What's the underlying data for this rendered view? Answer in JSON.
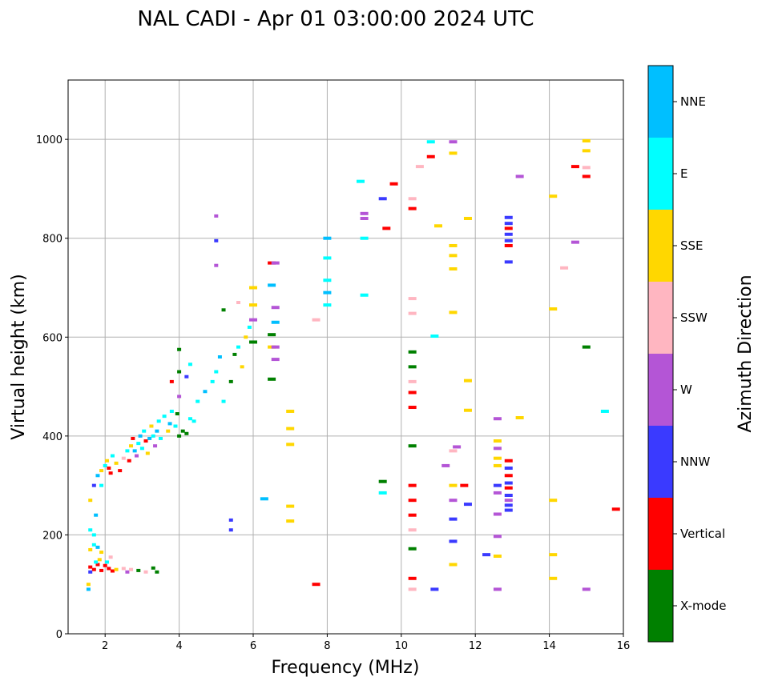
{
  "chart_data": {
    "type": "scatter",
    "title": "NAL CADI - Apr 01 03:00:00 2024 UTC",
    "xlabel": "Frequency (MHz)",
    "ylabel": "Virtual height (km)",
    "xlim": [
      1,
      16
    ],
    "ylim": [
      0,
      1120
    ],
    "xticks": [
      2,
      4,
      6,
      8,
      10,
      12,
      14,
      16
    ],
    "yticks": [
      0,
      200,
      400,
      600,
      800,
      1000
    ],
    "grid": true,
    "colorbar": {
      "label": "Azimuth Direction",
      "categories": [
        {
          "name": "X-mode",
          "color": "#008000"
        },
        {
          "name": "Vertical",
          "color": "#ff0000"
        },
        {
          "name": "NNW",
          "color": "#3a3aff"
        },
        {
          "name": "W",
          "color": "#b455d6"
        },
        {
          "name": "SSW",
          "color": "#ffb6c1"
        },
        {
          "name": "SSE",
          "color": "#ffd700"
        },
        {
          "name": "E",
          "color": "#00ffff"
        },
        {
          "name": "NNE",
          "color": "#00bfff"
        }
      ]
    },
    "points": [
      {
        "x": 1.6,
        "y": 135,
        "d": "Vertical"
      },
      {
        "x": 1.7,
        "y": 130,
        "d": "Vertical"
      },
      {
        "x": 1.8,
        "y": 140,
        "d": "Vertical"
      },
      {
        "x": 1.9,
        "y": 128,
        "d": "Vertical"
      },
      {
        "x": 2.0,
        "y": 138,
        "d": "Vertical"
      },
      {
        "x": 2.1,
        "y": 132,
        "d": "Vertical"
      },
      {
        "x": 2.2,
        "y": 127,
        "d": "Vertical"
      },
      {
        "x": 1.6,
        "y": 125,
        "d": "NNW"
      },
      {
        "x": 1.75,
        "y": 145,
        "d": "E"
      },
      {
        "x": 1.85,
        "y": 150,
        "d": "SSE"
      },
      {
        "x": 2.05,
        "y": 145,
        "d": "E"
      },
      {
        "x": 2.15,
        "y": 155,
        "d": "SSW"
      },
      {
        "x": 2.3,
        "y": 130,
        "d": "SSE"
      },
      {
        "x": 2.5,
        "y": 132,
        "d": "SSW"
      },
      {
        "x": 2.6,
        "y": 125,
        "d": "W"
      },
      {
        "x": 2.7,
        "y": 130,
        "d": "SSW"
      },
      {
        "x": 2.9,
        "y": 128,
        "d": "X-mode"
      },
      {
        "x": 3.1,
        "y": 125,
        "d": "SSW"
      },
      {
        "x": 3.3,
        "y": 133,
        "d": "X-mode"
      },
      {
        "x": 3.4,
        "y": 125,
        "d": "X-mode"
      },
      {
        "x": 1.55,
        "y": 100,
        "d": "SSE"
      },
      {
        "x": 1.55,
        "y": 90,
        "d": "NNE"
      },
      {
        "x": 1.6,
        "y": 170,
        "d": "SSE"
      },
      {
        "x": 1.7,
        "y": 180,
        "d": "E"
      },
      {
        "x": 1.8,
        "y": 175,
        "d": "NNE"
      },
      {
        "x": 1.9,
        "y": 165,
        "d": "SSE"
      },
      {
        "x": 1.7,
        "y": 200,
        "d": "E"
      },
      {
        "x": 1.6,
        "y": 210,
        "d": "E"
      },
      {
        "x": 1.75,
        "y": 240,
        "d": "NNE"
      },
      {
        "x": 1.6,
        "y": 270,
        "d": "SSE"
      },
      {
        "x": 1.7,
        "y": 300,
        "d": "NNW"
      },
      {
        "x": 1.9,
        "y": 300,
        "d": "E"
      },
      {
        "x": 1.8,
        "y": 320,
        "d": "NNE"
      },
      {
        "x": 1.9,
        "y": 330,
        "d": "SSE"
      },
      {
        "x": 2.0,
        "y": 340,
        "d": "E"
      },
      {
        "x": 2.05,
        "y": 350,
        "d": "SSE"
      },
      {
        "x": 2.1,
        "y": 335,
        "d": "Vertical"
      },
      {
        "x": 2.15,
        "y": 325,
        "d": "Vertical"
      },
      {
        "x": 2.2,
        "y": 360,
        "d": "E"
      },
      {
        "x": 2.3,
        "y": 345,
        "d": "SSE"
      },
      {
        "x": 2.4,
        "y": 330,
        "d": "Vertical"
      },
      {
        "x": 2.5,
        "y": 355,
        "d": "SSW"
      },
      {
        "x": 2.6,
        "y": 370,
        "d": "E"
      },
      {
        "x": 2.65,
        "y": 350,
        "d": "Vertical"
      },
      {
        "x": 2.7,
        "y": 380,
        "d": "SSE"
      },
      {
        "x": 2.75,
        "y": 395,
        "d": "Vertical"
      },
      {
        "x": 2.8,
        "y": 370,
        "d": "NNE"
      },
      {
        "x": 2.85,
        "y": 360,
        "d": "W"
      },
      {
        "x": 2.9,
        "y": 385,
        "d": "E"
      },
      {
        "x": 2.95,
        "y": 400,
        "d": "NNE"
      },
      {
        "x": 3.0,
        "y": 375,
        "d": "E"
      },
      {
        "x": 3.05,
        "y": 410,
        "d": "E"
      },
      {
        "x": 3.1,
        "y": 390,
        "d": "Vertical"
      },
      {
        "x": 3.15,
        "y": 365,
        "d": "SSE"
      },
      {
        "x": 3.2,
        "y": 395,
        "d": "NNE"
      },
      {
        "x": 3.25,
        "y": 420,
        "d": "SSE"
      },
      {
        "x": 3.3,
        "y": 400,
        "d": "E"
      },
      {
        "x": 3.35,
        "y": 380,
        "d": "W"
      },
      {
        "x": 3.4,
        "y": 410,
        "d": "NNE"
      },
      {
        "x": 3.45,
        "y": 430,
        "d": "E"
      },
      {
        "x": 3.5,
        "y": 395,
        "d": "E"
      },
      {
        "x": 3.6,
        "y": 440,
        "d": "E"
      },
      {
        "x": 3.7,
        "y": 410,
        "d": "SSE"
      },
      {
        "x": 3.75,
        "y": 425,
        "d": "NNE"
      },
      {
        "x": 3.8,
        "y": 450,
        "d": "E"
      },
      {
        "x": 3.9,
        "y": 420,
        "d": "E"
      },
      {
        "x": 3.95,
        "y": 445,
        "d": "X-mode"
      },
      {
        "x": 4.0,
        "y": 400,
        "d": "X-mode"
      },
      {
        "x": 4.1,
        "y": 410,
        "d": "X-mode"
      },
      {
        "x": 4.2,
        "y": 405,
        "d": "X-mode"
      },
      {
        "x": 4.3,
        "y": 435,
        "d": "E"
      },
      {
        "x": 4.4,
        "y": 430,
        "d": "E"
      },
      {
        "x": 4.0,
        "y": 480,
        "d": "W"
      },
      {
        "x": 4.0,
        "y": 530,
        "d": "X-mode"
      },
      {
        "x": 4.0,
        "y": 575,
        "d": "X-mode"
      },
      {
        "x": 3.8,
        "y": 510,
        "d": "Vertical"
      },
      {
        "x": 4.2,
        "y": 520,
        "d": "NNW"
      },
      {
        "x": 4.3,
        "y": 545,
        "d": "E"
      },
      {
        "x": 4.5,
        "y": 470,
        "d": "E"
      },
      {
        "x": 4.7,
        "y": 490,
        "d": "NNE"
      },
      {
        "x": 4.9,
        "y": 510,
        "d": "E"
      },
      {
        "x": 5.0,
        "y": 530,
        "d": "E"
      },
      {
        "x": 5.1,
        "y": 560,
        "d": "NNE"
      },
      {
        "x": 5.2,
        "y": 470,
        "d": "E"
      },
      {
        "x": 5.4,
        "y": 510,
        "d": "X-mode"
      },
      {
        "x": 5.5,
        "y": 565,
        "d": "X-mode"
      },
      {
        "x": 5.6,
        "y": 580,
        "d": "E"
      },
      {
        "x": 5.7,
        "y": 540,
        "d": "SSE"
      },
      {
        "x": 5.8,
        "y": 600,
        "d": "SSE"
      },
      {
        "x": 5.9,
        "y": 620,
        "d": "E"
      },
      {
        "x": 6.0,
        "y": 590,
        "d": "X-mode"
      },
      {
        "x": 6.0,
        "y": 635,
        "d": "W"
      },
      {
        "x": 6.0,
        "y": 665,
        "d": "SSE"
      },
      {
        "x": 6.0,
        "y": 700,
        "d": "SSE"
      },
      {
        "x": 5.6,
        "y": 670,
        "d": "SSW"
      },
      {
        "x": 5.2,
        "y": 655,
        "d": "X-mode"
      },
      {
        "x": 5.0,
        "y": 745,
        "d": "W"
      },
      {
        "x": 5.0,
        "y": 795,
        "d": "NNW"
      },
      {
        "x": 5.0,
        "y": 845,
        "d": "W"
      },
      {
        "x": 5.4,
        "y": 230,
        "d": "NNW"
      },
      {
        "x": 5.4,
        "y": 210,
        "d": "NNW"
      },
      {
        "x": 6.3,
        "y": 273,
        "d": "NNE"
      },
      {
        "x": 6.5,
        "y": 750,
        "d": "Vertical"
      },
      {
        "x": 6.6,
        "y": 750,
        "d": "W"
      },
      {
        "x": 6.5,
        "y": 605,
        "d": "X-mode"
      },
      {
        "x": 6.5,
        "y": 580,
        "d": "SSE"
      },
      {
        "x": 6.6,
        "y": 580,
        "d": "W"
      },
      {
        "x": 6.6,
        "y": 555,
        "d": "W"
      },
      {
        "x": 6.5,
        "y": 515,
        "d": "X-mode"
      },
      {
        "x": 6.6,
        "y": 660,
        "d": "W"
      },
      {
        "x": 6.6,
        "y": 630,
        "d": "NNE"
      },
      {
        "x": 6.5,
        "y": 705,
        "d": "NNE"
      },
      {
        "x": 7.0,
        "y": 450,
        "d": "SSE"
      },
      {
        "x": 7.0,
        "y": 415,
        "d": "SSE"
      },
      {
        "x": 7.0,
        "y": 383,
        "d": "SSE"
      },
      {
        "x": 7.0,
        "y": 258,
        "d": "SSE"
      },
      {
        "x": 7.0,
        "y": 228,
        "d": "SSE"
      },
      {
        "x": 7.7,
        "y": 100,
        "d": "Vertical"
      },
      {
        "x": 7.7,
        "y": 635,
        "d": "SSW"
      },
      {
        "x": 8.0,
        "y": 800,
        "d": "NNE"
      },
      {
        "x": 8.0,
        "y": 760,
        "d": "E"
      },
      {
        "x": 8.0,
        "y": 690,
        "d": "NNE"
      },
      {
        "x": 8.0,
        "y": 665,
        "d": "E"
      },
      {
        "x": 8.0,
        "y": 715,
        "d": "E"
      },
      {
        "x": 8.9,
        "y": 915,
        "d": "E"
      },
      {
        "x": 9.0,
        "y": 850,
        "d": "W"
      },
      {
        "x": 9.0,
        "y": 840,
        "d": "W"
      },
      {
        "x": 9.0,
        "y": 800,
        "d": "E"
      },
      {
        "x": 9.0,
        "y": 685,
        "d": "E"
      },
      {
        "x": 9.5,
        "y": 880,
        "d": "NNW"
      },
      {
        "x": 9.6,
        "y": 820,
        "d": "Vertical"
      },
      {
        "x": 9.8,
        "y": 910,
        "d": "Vertical"
      },
      {
        "x": 9.5,
        "y": 308,
        "d": "X-mode"
      },
      {
        "x": 9.5,
        "y": 285,
        "d": "E"
      },
      {
        "x": 10.3,
        "y": 880,
        "d": "SSW"
      },
      {
        "x": 10.3,
        "y": 860,
        "d": "Vertical"
      },
      {
        "x": 10.3,
        "y": 678,
        "d": "SSW"
      },
      {
        "x": 10.3,
        "y": 648,
        "d": "SSW"
      },
      {
        "x": 10.3,
        "y": 570,
        "d": "X-mode"
      },
      {
        "x": 10.3,
        "y": 540,
        "d": "X-mode"
      },
      {
        "x": 10.3,
        "y": 510,
        "d": "SSW"
      },
      {
        "x": 10.3,
        "y": 488,
        "d": "Vertical"
      },
      {
        "x": 10.3,
        "y": 458,
        "d": "Vertical"
      },
      {
        "x": 10.3,
        "y": 380,
        "d": "X-mode"
      },
      {
        "x": 10.3,
        "y": 300,
        "d": "Vertical"
      },
      {
        "x": 10.3,
        "y": 270,
        "d": "Vertical"
      },
      {
        "x": 10.3,
        "y": 240,
        "d": "Vertical"
      },
      {
        "x": 10.3,
        "y": 210,
        "d": "SSW"
      },
      {
        "x": 10.3,
        "y": 172,
        "d": "X-mode"
      },
      {
        "x": 10.3,
        "y": 112,
        "d": "Vertical"
      },
      {
        "x": 10.3,
        "y": 90,
        "d": "SSW"
      },
      {
        "x": 10.5,
        "y": 945,
        "d": "SSW"
      },
      {
        "x": 10.8,
        "y": 965,
        "d": "Vertical"
      },
      {
        "x": 10.8,
        "y": 995,
        "d": "E"
      },
      {
        "x": 10.9,
        "y": 602,
        "d": "E"
      },
      {
        "x": 11.0,
        "y": 825,
        "d": "SSE"
      },
      {
        "x": 10.9,
        "y": 90,
        "d": "NNW"
      },
      {
        "x": 11.4,
        "y": 995,
        "d": "W"
      },
      {
        "x": 11.4,
        "y": 972,
        "d": "SSE"
      },
      {
        "x": 11.4,
        "y": 785,
        "d": "SSE"
      },
      {
        "x": 11.4,
        "y": 765,
        "d": "SSE"
      },
      {
        "x": 11.4,
        "y": 738,
        "d": "SSE"
      },
      {
        "x": 11.4,
        "y": 650,
        "d": "SSE"
      },
      {
        "x": 11.4,
        "y": 370,
        "d": "SSW"
      },
      {
        "x": 11.4,
        "y": 300,
        "d": "SSE"
      },
      {
        "x": 11.4,
        "y": 270,
        "d": "W"
      },
      {
        "x": 11.4,
        "y": 232,
        "d": "NNW"
      },
      {
        "x": 11.4,
        "y": 187,
        "d": "NNW"
      },
      {
        "x": 11.4,
        "y": 140,
        "d": "SSE"
      },
      {
        "x": 11.5,
        "y": 378,
        "d": "W"
      },
      {
        "x": 11.2,
        "y": 340,
        "d": "W"
      },
      {
        "x": 11.7,
        "y": 300,
        "d": "Vertical"
      },
      {
        "x": 11.8,
        "y": 840,
        "d": "SSE"
      },
      {
        "x": 11.8,
        "y": 512,
        "d": "SSE"
      },
      {
        "x": 11.8,
        "y": 452,
        "d": "SSE"
      },
      {
        "x": 11.8,
        "y": 262,
        "d": "NNW"
      },
      {
        "x": 12.3,
        "y": 160,
        "d": "NNW"
      },
      {
        "x": 12.6,
        "y": 435,
        "d": "W"
      },
      {
        "x": 12.6,
        "y": 390,
        "d": "SSE"
      },
      {
        "x": 12.6,
        "y": 375,
        "d": "W"
      },
      {
        "x": 12.6,
        "y": 355,
        "d": "SSE"
      },
      {
        "x": 12.6,
        "y": 340,
        "d": "SSE"
      },
      {
        "x": 12.6,
        "y": 300,
        "d": "NNW"
      },
      {
        "x": 12.6,
        "y": 285,
        "d": "W"
      },
      {
        "x": 12.6,
        "y": 242,
        "d": "W"
      },
      {
        "x": 12.6,
        "y": 197,
        "d": "W"
      },
      {
        "x": 12.6,
        "y": 157,
        "d": "SSE"
      },
      {
        "x": 12.6,
        "y": 90,
        "d": "W"
      },
      {
        "x": 12.9,
        "y": 842,
        "d": "NNW"
      },
      {
        "x": 12.9,
        "y": 830,
        "d": "NNW"
      },
      {
        "x": 12.9,
        "y": 820,
        "d": "Vertical"
      },
      {
        "x": 12.9,
        "y": 808,
        "d": "NNW"
      },
      {
        "x": 12.9,
        "y": 795,
        "d": "NNW"
      },
      {
        "x": 12.9,
        "y": 785,
        "d": "Vertical"
      },
      {
        "x": 12.9,
        "y": 752,
        "d": "NNW"
      },
      {
        "x": 12.9,
        "y": 350,
        "d": "Vertical"
      },
      {
        "x": 12.9,
        "y": 335,
        "d": "NNW"
      },
      {
        "x": 12.9,
        "y": 320,
        "d": "Vertical"
      },
      {
        "x": 12.9,
        "y": 305,
        "d": "NNW"
      },
      {
        "x": 12.9,
        "y": 295,
        "d": "Vertical"
      },
      {
        "x": 12.9,
        "y": 280,
        "d": "NNW"
      },
      {
        "x": 12.9,
        "y": 270,
        "d": "W"
      },
      {
        "x": 12.9,
        "y": 260,
        "d": "NNW"
      },
      {
        "x": 12.9,
        "y": 250,
        "d": "NNW"
      },
      {
        "x": 13.2,
        "y": 925,
        "d": "W"
      },
      {
        "x": 13.2,
        "y": 437,
        "d": "SSE"
      },
      {
        "x": 14.1,
        "y": 885,
        "d": "SSE"
      },
      {
        "x": 14.1,
        "y": 657,
        "d": "SSE"
      },
      {
        "x": 14.1,
        "y": 270,
        "d": "SSE"
      },
      {
        "x": 14.1,
        "y": 160,
        "d": "SSE"
      },
      {
        "x": 14.1,
        "y": 112,
        "d": "SSE"
      },
      {
        "x": 14.4,
        "y": 740,
        "d": "SSW"
      },
      {
        "x": 14.7,
        "y": 945,
        "d": "Vertical"
      },
      {
        "x": 14.7,
        "y": 792,
        "d": "W"
      },
      {
        "x": 15.0,
        "y": 997,
        "d": "SSE"
      },
      {
        "x": 15.0,
        "y": 977,
        "d": "SSE"
      },
      {
        "x": 15.0,
        "y": 943,
        "d": "SSW"
      },
      {
        "x": 15.0,
        "y": 925,
        "d": "Vertical"
      },
      {
        "x": 15.0,
        "y": 580,
        "d": "X-mode"
      },
      {
        "x": 15.0,
        "y": 90,
        "d": "W"
      },
      {
        "x": 15.5,
        "y": 450,
        "d": "E"
      },
      {
        "x": 15.8,
        "y": 252,
        "d": "Vertical"
      }
    ]
  }
}
